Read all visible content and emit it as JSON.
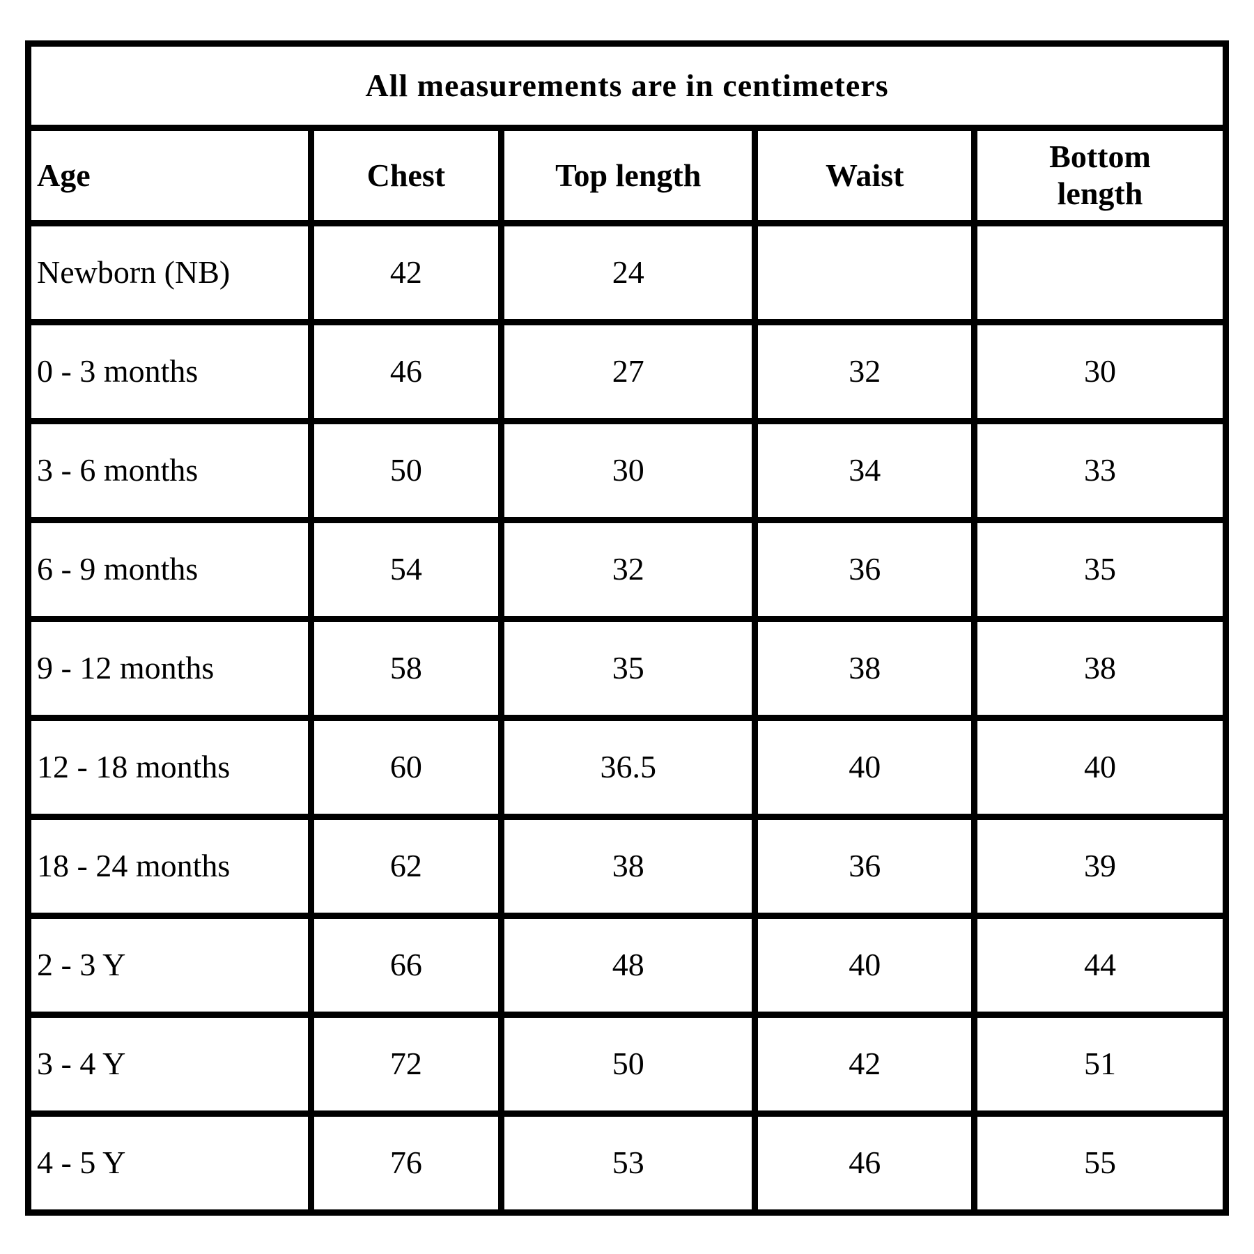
{
  "table": {
    "title": "All measurements are in centimeters",
    "columns": [
      "Age",
      "Chest",
      "Top length",
      "Waist",
      "Bottom length"
    ],
    "rows": [
      [
        "Newborn (NB)",
        "42",
        "24",
        "",
        ""
      ],
      [
        "0 - 3 months",
        "46",
        "27",
        "32",
        "30"
      ],
      [
        "3 - 6 months",
        "50",
        "30",
        "34",
        "33"
      ],
      [
        "6 - 9 months",
        "54",
        "32",
        "36",
        "35"
      ],
      [
        "9 - 12 months",
        "58",
        "35",
        "38",
        "38"
      ],
      [
        "12 - 18 months",
        "60",
        "36.5",
        "40",
        "40"
      ],
      [
        "18 - 24 months",
        "62",
        "38",
        "36",
        "39"
      ],
      [
        "2 - 3 Y",
        "66",
        "48",
        "40",
        "44"
      ],
      [
        "3 - 4 Y",
        "72",
        "50",
        "42",
        "51"
      ],
      [
        "4 - 5 Y",
        "76",
        "53",
        "46",
        "55"
      ]
    ]
  }
}
